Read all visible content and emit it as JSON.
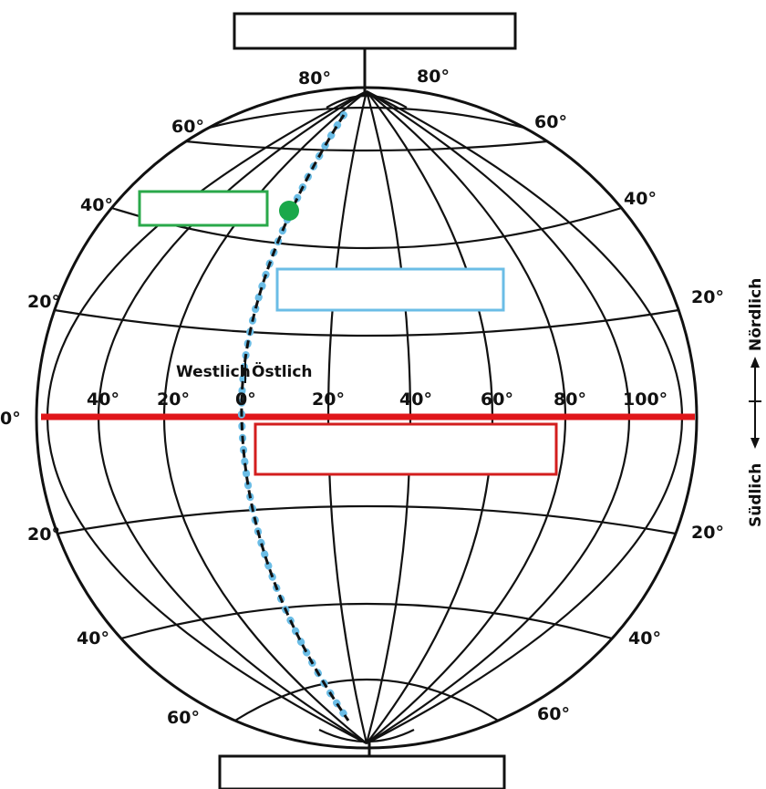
{
  "latitude_labels": {
    "top_left_80": "80°",
    "top_right_80": "80°",
    "left_60_n": "60°",
    "right_60_n": "60°",
    "left_40_n": "40°",
    "right_40_n": "40°",
    "left_20_n": "20°",
    "right_20_n": "20°",
    "equator": "0°",
    "left_20_s": "20°",
    "right_20_s": "20°",
    "left_40_s": "40°",
    "right_40_s": "40°",
    "left_60_s": "60°",
    "right_60_s": "60°"
  },
  "longitude_labels": {
    "w40": "40°",
    "w20": "20°",
    "zero": "0°",
    "e20": "20°",
    "e40": "40°",
    "e60": "60°",
    "e80": "80°",
    "e100": "100°"
  },
  "direction_labels": {
    "west": "Westlich",
    "east": "Östlich",
    "north": "Nördlich",
    "south": "Südlich"
  },
  "colors": {
    "equator": "#e0161a",
    "meridian_dots": "#6bbde6",
    "point": "#1aa84a",
    "green_box": "#2aa84a",
    "blue_box": "#6bbde6",
    "red_box": "#d31e1e"
  }
}
